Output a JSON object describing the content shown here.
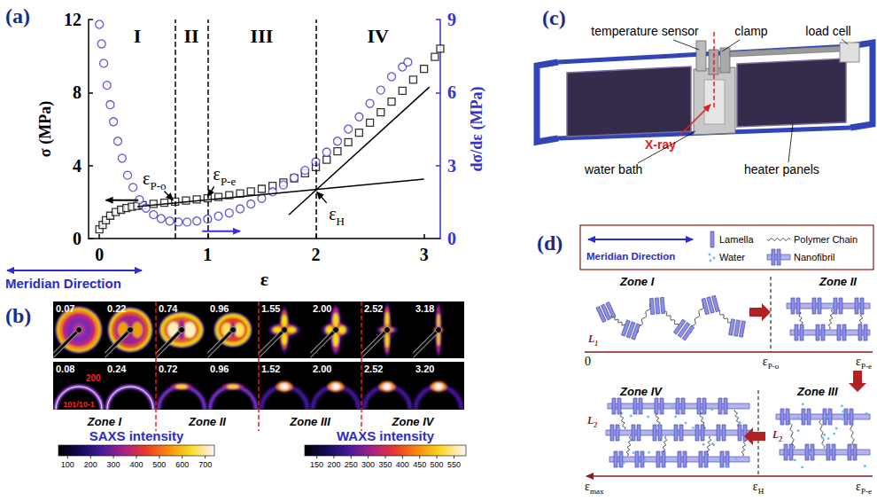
{
  "chart_data": {
    "type": "scatter",
    "panel_letter": "(a)",
    "x_label": "ε",
    "y_label": "σ (MPa)",
    "y2_label": "dσ/dε (MPa)",
    "xlim": [
      -0.1,
      3.15
    ],
    "xticks": [
      0,
      1,
      2,
      3
    ],
    "ylim": [
      0,
      12
    ],
    "yticks": [
      0,
      4,
      8,
      12
    ],
    "y2lim": [
      0,
      9
    ],
    "y2ticks": [
      0,
      3,
      6,
      9
    ],
    "grid": false,
    "series": [
      {
        "color": "#000000",
        "marker": "open square",
        "x": [
          0,
          0.03,
          0.06,
          0.1,
          0.15,
          0.2,
          0.25,
          0.3,
          0.35,
          0.4,
          0.5,
          0.6,
          0.7,
          0.8,
          0.9,
          1.0,
          1.1,
          1.2,
          1.3,
          1.4,
          1.5,
          1.6,
          1.7,
          1.8,
          1.9,
          2.0,
          2.1,
          2.2,
          2.3,
          2.4,
          2.5,
          2.6,
          2.7,
          2.8,
          2.9,
          3.0,
          3.1,
          3.15
        ],
        "values": [
          0.5,
          0.75,
          1.0,
          1.25,
          1.45,
          1.58,
          1.67,
          1.74,
          1.79,
          1.83,
          1.9,
          1.96,
          2.02,
          2.08,
          2.14,
          2.2,
          2.28,
          2.37,
          2.47,
          2.58,
          2.72,
          2.88,
          3.07,
          3.3,
          3.58,
          3.92,
          4.32,
          4.78,
          5.28,
          5.8,
          6.35,
          6.92,
          7.5,
          8.1,
          8.7,
          9.3,
          9.95,
          10.4
        ]
      },
      {
        "color": "#3a30d4",
        "marker": "open circle",
        "axis": "y2",
        "x": [
          0,
          0.02,
          0.04,
          0.07,
          0.1,
          0.13,
          0.17,
          0.21,
          0.26,
          0.31,
          0.37,
          0.43,
          0.5,
          0.57,
          0.65,
          0.73,
          0.81,
          0.9,
          1.0,
          1.1,
          1.2,
          1.3,
          1.4,
          1.5,
          1.6,
          1.7,
          1.8,
          1.9,
          2.0,
          2.1,
          2.2,
          2.3,
          2.4,
          2.5,
          2.6,
          2.7,
          2.8,
          2.85
        ],
        "values": [
          8.8,
          8.0,
          7.2,
          6.3,
          5.5,
          4.8,
          4.0,
          3.3,
          2.6,
          2.1,
          1.6,
          1.25,
          0.98,
          0.82,
          0.72,
          0.68,
          0.68,
          0.72,
          0.8,
          0.92,
          1.05,
          1.22,
          1.42,
          1.65,
          1.92,
          2.2,
          2.5,
          2.8,
          3.15,
          3.55,
          4.0,
          4.5,
          5.0,
          5.55,
          6.1,
          6.65,
          7.05,
          7.25
        ]
      },
      {
        "type": "line",
        "color": "#000000",
        "line_style": "solid",
        "x": [
          0.35,
          3.0
        ],
        "values": [
          1.75,
          3.25
        ]
      },
      {
        "type": "line",
        "color": "#000000",
        "line_style": "solid",
        "x": [
          1.75,
          3.05
        ],
        "values": [
          1.3,
          8.3
        ]
      }
    ],
    "zone_boundaries": {
      "x": [
        0.7,
        1.0,
        2.0
      ],
      "line_style": "dashed"
    },
    "zone_labels": [
      "I",
      "II",
      "III",
      "IV"
    ],
    "annotations": [
      {
        "text": {
          "base": "ε",
          "sub": "P-o"
        },
        "x": 0.4,
        "y": 2.95,
        "arrow_from": [
          0.6,
          2.6
        ],
        "arrow_to": [
          0.68,
          2.1
        ]
      },
      {
        "text": {
          "base": "ε",
          "sub": "P-e"
        },
        "x": 1.05,
        "y": 3.2,
        "arrow_from": [
          1.06,
          2.85
        ],
        "arrow_to": [
          1.0,
          2.3
        ]
      },
      {
        "text": {
          "base": "ε",
          "sub": "H"
        },
        "x": 2.12,
        "y": 1.0,
        "arrow_from": [
          2.1,
          1.95
        ],
        "arrow_to": [
          2.01,
          2.55
        ]
      }
    ],
    "axis_arrows": [
      {
        "color": "#000000",
        "from": [
          0.36,
          2.1
        ],
        "to": [
          0.06,
          2.1
        ]
      },
      {
        "color": "#3a30d4",
        "axis": "y2",
        "from": [
          0.95,
          0.3
        ],
        "to": [
          1.3,
          0.3
        ]
      }
    ],
    "direction_label": "Meridian Direction"
  },
  "panels": {
    "b": {
      "letter": "(b)",
      "saxs_strains": [
        "0.07",
        "0.22",
        "0.74",
        "0.96",
        "1.55",
        "2.00",
        "2.52",
        "3.18"
      ],
      "waxs_strains": [
        "0.08",
        "0.24",
        "0.72",
        "0.96",
        "1.52",
        "2.00",
        "2.52",
        "3.20"
      ],
      "waxs_reflections": [
        "200",
        "101/10-1"
      ],
      "zones": [
        "Zone I",
        "Zone II",
        "Zone III",
        "Zone IV"
      ],
      "colorbars": [
        {
          "title": "SAXS intensity",
          "range": [
            60,
            740
          ],
          "ticks": [
            100,
            200,
            300,
            400,
            500,
            600,
            700
          ]
        },
        {
          "title": "WAXS intensity",
          "range": [
            115,
            585
          ],
          "ticks": [
            150,
            200,
            250,
            300,
            350,
            400,
            450,
            500,
            550
          ]
        }
      ]
    },
    "c": {
      "letter": "(c)",
      "labels": {
        "temperature_sensor": "temperature sensor",
        "clamp": "clamp",
        "load_cell": "load cell",
        "water_bath": "water bath",
        "x_ray": "X-ray",
        "heater_panels": "heater panels"
      }
    },
    "d": {
      "letter": "(d)",
      "legend": {
        "direction": "Meridian Direction",
        "items": [
          "Lamella",
          "Polymer Chain",
          "Water",
          "Nanofibril"
        ]
      },
      "zones": [
        "Zone I",
        "Zone II",
        "Zone III",
        "Zone IV"
      ],
      "top_axis": [
        "0",
        {
          "base": "ε",
          "sub": "P-o"
        },
        {
          "base": "ε",
          "sub": "P-e"
        }
      ],
      "bottom_axis": [
        {
          "base": "ε",
          "sub": "max"
        },
        {
          "base": "ε",
          "sub": "H"
        },
        {
          "base": "ε",
          "sub": "P-e"
        }
      ],
      "spacings": [
        {
          "base": "L",
          "sub": "1"
        },
        {
          "base": "L",
          "sub": "2"
        },
        {
          "base": "L",
          "sub": "2"
        }
      ]
    }
  }
}
